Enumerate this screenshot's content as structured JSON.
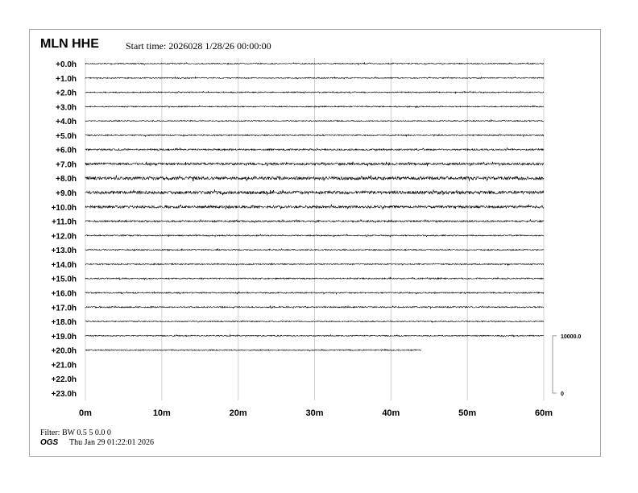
{
  "header": {
    "station": "MLN HHE",
    "start_time": "Start time: 2026028  1/28/26 00:00:00"
  },
  "footer": {
    "filter": "Filter: BW 0.5 5 0.0 0",
    "org": "OGS",
    "printed": "Thu Jan 29 01:22:01 2026"
  },
  "chart_data": {
    "type": "line",
    "title": "",
    "xlabel": "",
    "ylabel": "",
    "xlim": [
      0,
      60
    ],
    "x_ticks": [
      "0m",
      "10m",
      "20m",
      "30m",
      "40m",
      "50m",
      "60m"
    ],
    "row_labels": [
      "+0.0h",
      "+1.0h",
      "+2.0h",
      "+3.0h",
      "+4.0h",
      "+5.0h",
      "+6.0h",
      "+7.0h",
      "+8.0h",
      "+9.0h",
      "+10.0h",
      "+11.0h",
      "+12.0h",
      "+13.0h",
      "+14.0h",
      "+15.0h",
      "+16.0h",
      "+17.0h",
      "+18.0h",
      "+19.0h",
      "+20.0h",
      "+21.0h",
      "+22.0h",
      "+23.0h"
    ],
    "trace_end_minutes": [
      60,
      60,
      60,
      60,
      60,
      60,
      60,
      60,
      60,
      60,
      60,
      60,
      60,
      60,
      60,
      60,
      60,
      60,
      60,
      60,
      44,
      0,
      0,
      0
    ],
    "relative_amplitude": [
      0.6,
      0.6,
      0.6,
      0.6,
      0.6,
      0.7,
      0.9,
      1.3,
      1.8,
      1.8,
      1.4,
      0.9,
      0.7,
      0.7,
      0.7,
      0.7,
      0.7,
      0.7,
      0.6,
      0.6,
      0.6,
      0,
      0,
      0
    ],
    "grid": true,
    "scale_bar": {
      "top_label": "10000.0",
      "bottom_label": "0"
    },
    "trace_color": "#000000",
    "grid_color": "#d0d0d0"
  }
}
